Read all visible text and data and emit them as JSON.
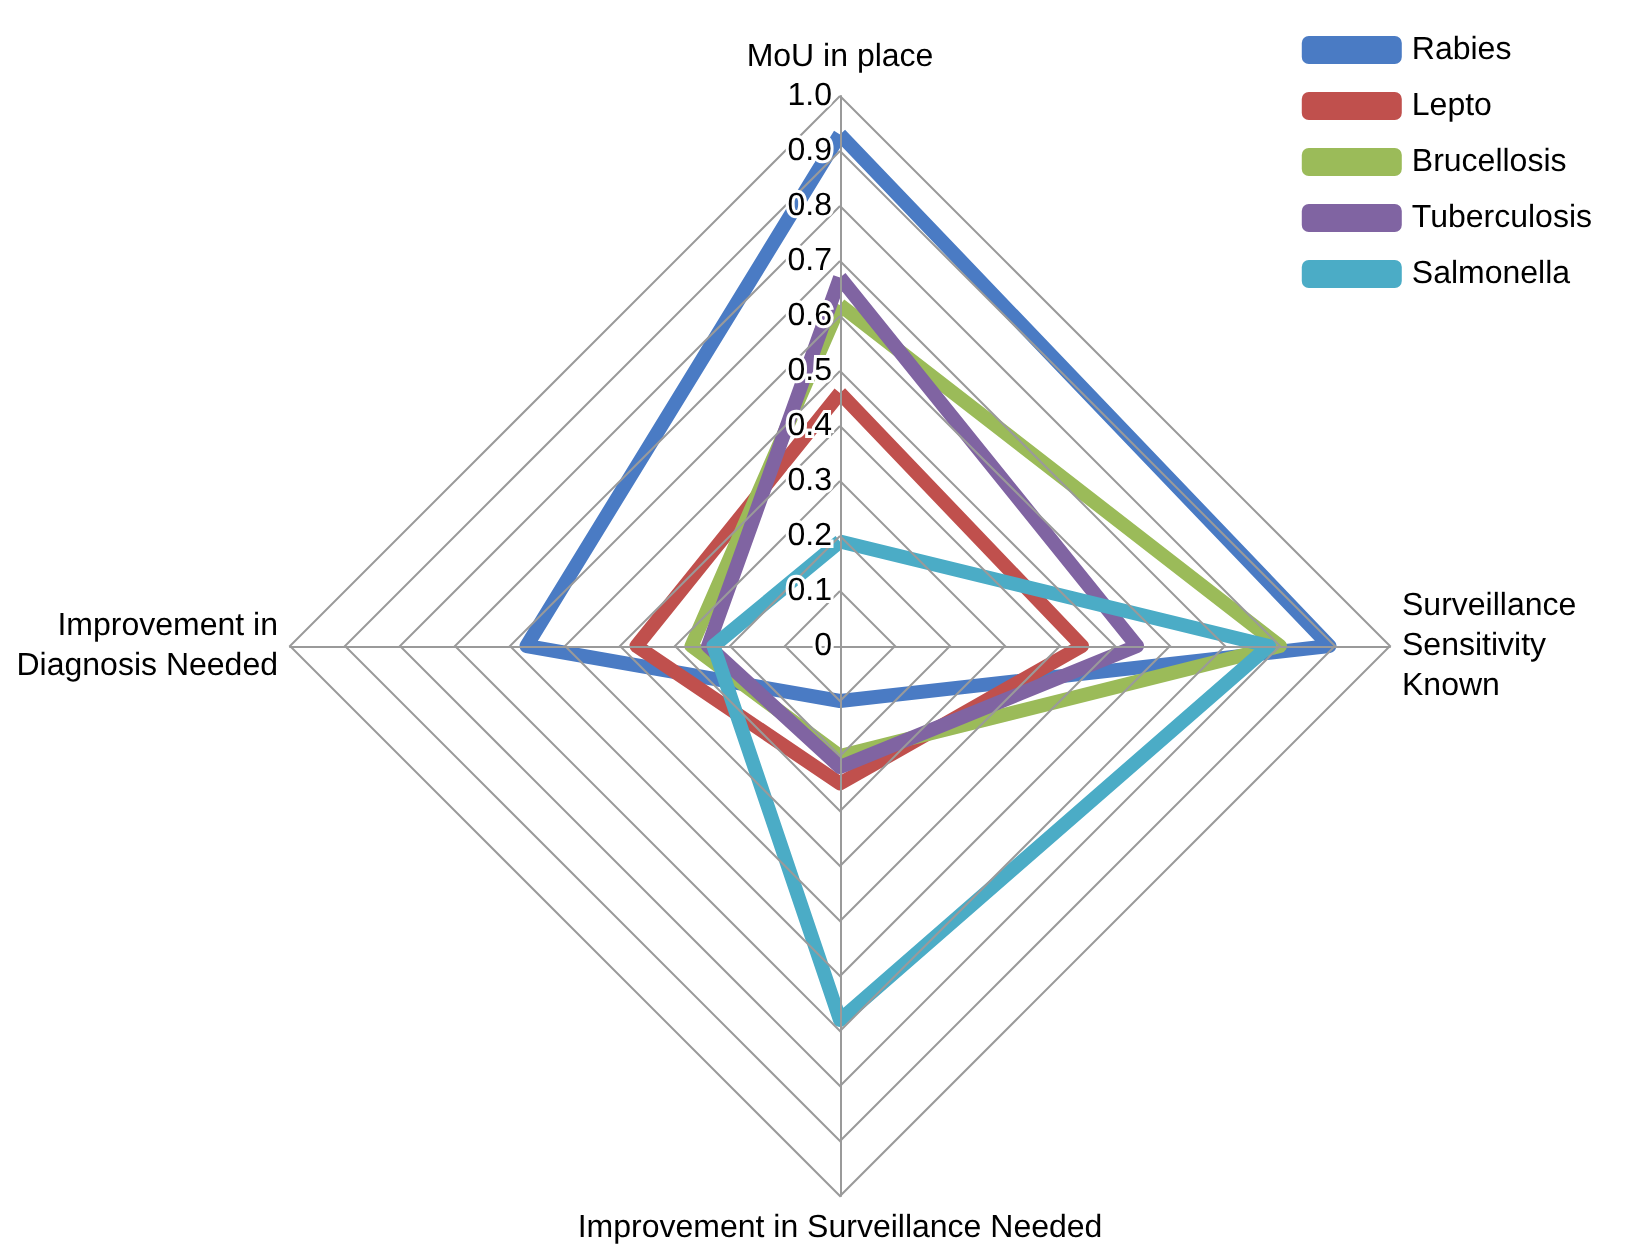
{
  "chart_data": {
    "type": "radar",
    "categories": [
      "MoU in place",
      "Surveillance Sensitivity Known",
      "Improvement in Surveillance Needed",
      "Improvement in Diagnosis Needed"
    ],
    "series": [
      {
        "name": "Rabies",
        "color": "#4a7bc4",
        "values": [
          0.93,
          0.89,
          0.1,
          0.57
        ]
      },
      {
        "name": "Lepto",
        "color": "#c0504d",
        "values": [
          0.46,
          0.44,
          0.25,
          0.37
        ]
      },
      {
        "name": "Brucellosis",
        "color": "#9bbb59",
        "values": [
          0.62,
          0.8,
          0.2,
          0.27
        ]
      },
      {
        "name": "Tuberculosis",
        "color": "#8064a2",
        "values": [
          0.67,
          0.54,
          0.22,
          0.24
        ]
      },
      {
        "name": "Salmonella",
        "color": "#4bacc6",
        "values": [
          0.19,
          0.78,
          0.68,
          0.23
        ]
      }
    ],
    "ylim": [
      0,
      1
    ],
    "yticks": [
      0,
      0.1,
      0.2,
      0.3,
      0.4,
      0.5,
      0.6,
      0.7,
      0.8,
      0.9,
      {
        "value": 1,
        "label": "1.0"
      }
    ],
    "grid": true,
    "legend": "top right",
    "marker": "none",
    "line_style": "solid"
  }
}
